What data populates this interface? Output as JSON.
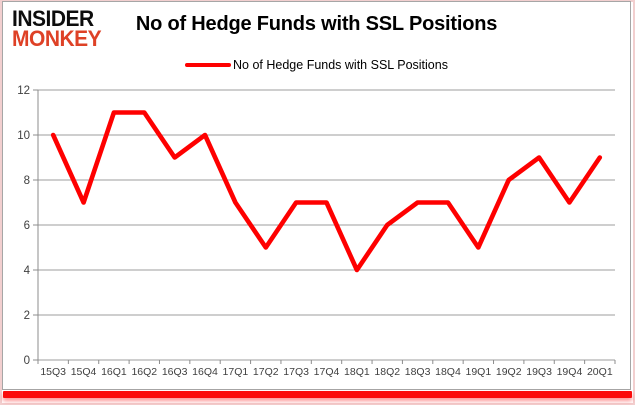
{
  "header": {
    "logo_line1": "INSIDER",
    "logo_line2": "MONKEY",
    "title": "No of Hedge Funds with SSL Positions"
  },
  "legend": {
    "label": "No of Hedge Funds with SSL Positions"
  },
  "colors": {
    "series": "#fe0000",
    "logo_red": "#de4126",
    "gridline": "#9c9c9c",
    "axis": "#8c8c8c",
    "tick_label": "#3f3f3f",
    "bottom_bar": "#fb0b0b"
  },
  "chart_data": {
    "type": "line",
    "title": "No of Hedge Funds with SSL Positions",
    "xlabel": "",
    "ylabel": "",
    "categories": [
      "15Q3",
      "15Q4",
      "16Q1",
      "16Q2",
      "16Q3",
      "16Q4",
      "17Q1",
      "17Q2",
      "17Q3",
      "17Q4",
      "18Q1",
      "18Q2",
      "18Q3",
      "18Q4",
      "19Q1",
      "19Q2",
      "19Q3",
      "19Q4",
      "20Q1"
    ],
    "series": [
      {
        "name": "No of Hedge Funds with SSL Positions",
        "values": [
          10,
          7,
          11,
          11,
          9,
          10,
          7,
          5,
          7,
          7,
          4,
          6,
          7,
          7,
          5,
          8,
          9,
          7,
          9
        ]
      }
    ],
    "ylim": [
      0,
      12
    ],
    "yticks": [
      0,
      2,
      4,
      6,
      8,
      10,
      12
    ],
    "grid": true,
    "legend_position": "top"
  }
}
